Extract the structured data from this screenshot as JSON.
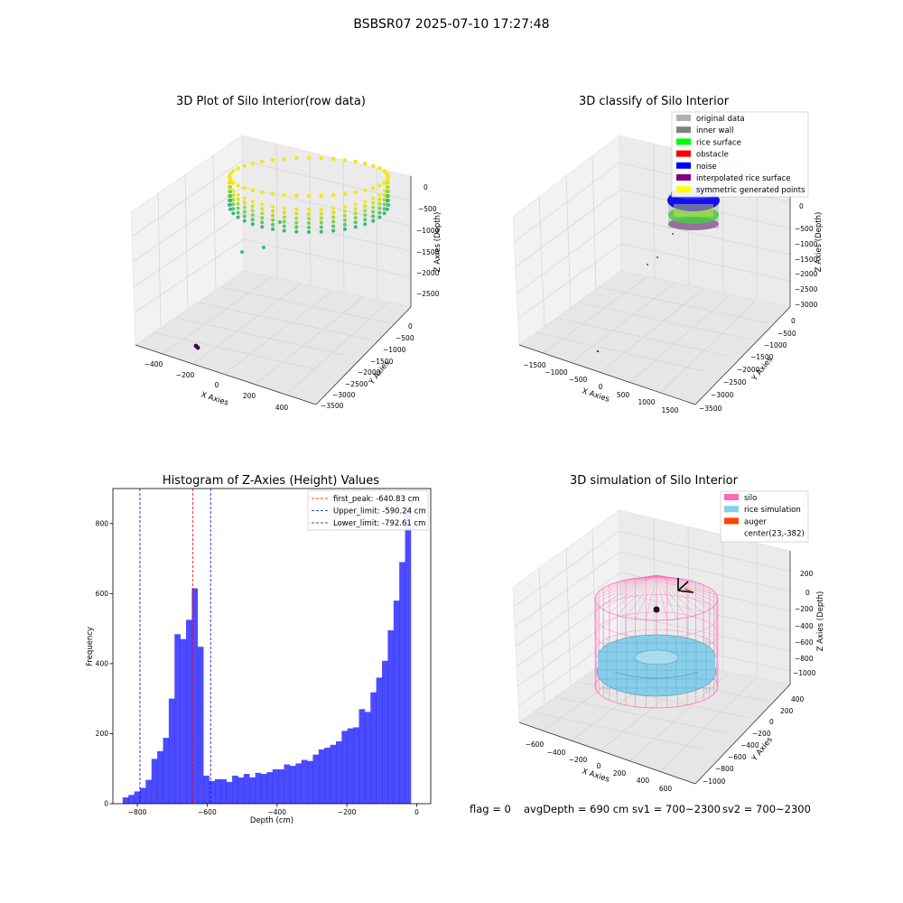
{
  "suptitle": "BSBSR07 2025-07-10 17:27:48",
  "colors": {
    "hist_bar": "#0000ff",
    "peak_line": "#ff0000",
    "limit_line": "#0000ff",
    "silo": "#ff69b4",
    "rice_simulation": "#87ceeb",
    "auger": "#ff4500",
    "original_data": "#b0b0b0",
    "inner_wall": "#808080",
    "rice_surface": "#00ff00",
    "obstacle": "#ff0000",
    "noise": "#0000ff",
    "interpolated_rice_surface": "#800080",
    "symmetric_generated_points": "#ffff00"
  },
  "chart_data": [
    {
      "type": "scatter",
      "panel": "top-left",
      "title": "3D Plot of Silo Interior(row data)",
      "xlabel": "X Axies",
      "ylabel": "Y Axies",
      "zlabel": "Z Axies (Depth)",
      "x_ticks": [
        "−400",
        "−200",
        "0",
        "200",
        "400"
      ],
      "y_ticks": [
        "0",
        "−500",
        "−1000",
        "−1500",
        "−2000",
        "−2500",
        "−3000",
        "−3500"
      ],
      "z_ticks": [
        "0",
        "−500",
        "−1000",
        "−1500",
        "−2000",
        "−2500"
      ],
      "colormap": "viridis"
    },
    {
      "type": "scatter",
      "panel": "top-right",
      "title": "3D classify of Silo Interior",
      "xlabel": "X Axies",
      "ylabel": "Y Axies",
      "zlabel": "Z Axies (Depth)",
      "x_ticks": [
        "−1500",
        "−1000",
        "−500",
        "0",
        "500",
        "1000",
        "1500"
      ],
      "y_ticks": [
        "0",
        "−500",
        "−1000",
        "−1500",
        "−2000",
        "−2500",
        "−3000",
        "−3500"
      ],
      "z_ticks": [
        "0",
        "−500",
        "−1000",
        "−1500",
        "−2000",
        "−2500",
        "−3000"
      ],
      "legend": [
        {
          "label": "original data",
          "color": "#b0b0b0"
        },
        {
          "label": "inner wall",
          "color": "#808080"
        },
        {
          "label": "rice surface",
          "color": "#00ff00"
        },
        {
          "label": "obstacle",
          "color": "#ff0000"
        },
        {
          "label": "noise",
          "color": "#0000ff"
        },
        {
          "label": "interpolated rice surface",
          "color": "#800080"
        },
        {
          "label": "symmetric generated points",
          "color": "#ffff00"
        }
      ],
      "legend_position": "top-right"
    },
    {
      "type": "bar",
      "panel": "bottom-left",
      "title": "Histogram of Z-Axies (Height) Values",
      "xlabel": "Depth (cm)",
      "ylabel": "Frequency",
      "xlim": [
        -870,
        40
      ],
      "ylim": [
        0,
        900
      ],
      "x_ticks": [
        -800,
        -600,
        -400,
        -200,
        0
      ],
      "x_tick_labels": [
        "−800",
        "−600",
        "−400",
        "−200",
        "0"
      ],
      "y_ticks": [
        0,
        200,
        400,
        600,
        800
      ],
      "bin_width": 16.5,
      "bins_start": -842,
      "values": [
        18,
        25,
        35,
        45,
        68,
        128,
        150,
        188,
        300,
        484,
        470,
        525,
        615,
        448,
        80,
        65,
        70,
        70,
        62,
        80,
        75,
        85,
        75,
        88,
        85,
        90,
        98,
        98,
        112,
        108,
        115,
        125,
        122,
        140,
        155,
        160,
        168,
        178,
        208,
        215,
        218,
        270,
        262,
        318,
        360,
        408,
        495,
        580,
        690,
        850
      ],
      "vlines": [
        {
          "label": "first_peak: -640.83 cm",
          "x": -640.83,
          "color": "#ff0000"
        },
        {
          "label": "Upper_limit: -590.24 cm",
          "x": -590.24,
          "color": "#0000ff"
        },
        {
          "label": "Lower_limit: -792.61 cm",
          "x": -792.61,
          "color": "#0000ff"
        }
      ],
      "legend_position": "top-right",
      "grid": false
    },
    {
      "type": "scatter",
      "panel": "bottom-right",
      "title": "3D simulation of Silo Interior",
      "xlabel": "X Axies",
      "ylabel": "Y Axies",
      "zlabel": "Z Axies (Depth)",
      "x_ticks": [
        "−600",
        "−400",
        "−200",
        "0",
        "200",
        "400",
        "600"
      ],
      "y_ticks": [
        "400",
        "200",
        "0",
        "−200",
        "−400",
        "−600",
        "−800",
        "−1000"
      ],
      "z_ticks": [
        "200",
        "0",
        "−200",
        "−400",
        "−600",
        "−800",
        "−1000"
      ],
      "legend": [
        {
          "label": "silo",
          "color": "#ff69b4"
        },
        {
          "label": "rice simulation",
          "color": "#87ceeb"
        },
        {
          "label": "auger",
          "color": "#ff4500"
        },
        {
          "label": "center(23,-382)",
          "color": ""
        }
      ],
      "legend_position": "top-right"
    }
  ],
  "footer": {
    "flag": "flag = 0",
    "avg_depth": "avgDepth = 690 cm",
    "sv1": "sv1 = 700~2300",
    "sv2": "sv2 = 700~2300"
  }
}
